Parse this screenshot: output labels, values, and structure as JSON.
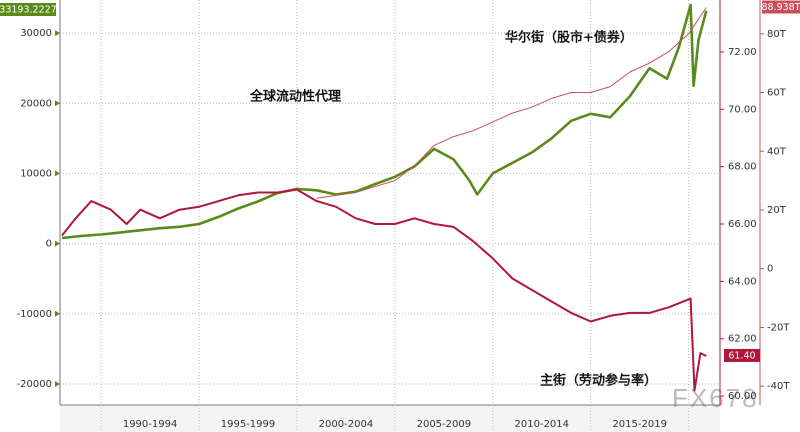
{
  "chart_data": {
    "type": "line",
    "annotations": [
      "华尔街（股市+债券）",
      "全球流动性代理",
      "主街（劳动参与率）"
    ],
    "watermark": "FX678",
    "categories": [
      "1990-1994",
      "1995-1999",
      "2000-2004",
      "2005-2009",
      "2010-2014",
      "2015-2019"
    ],
    "xlim": [
      1987.9,
      2021.6
    ],
    "xticks": [
      1990,
      1995,
      2000,
      2005,
      2010,
      2015,
      2020
    ],
    "ylim": [
      -23000,
      34714
    ],
    "yticks": [
      30000,
      20000,
      10000,
      0,
      -10000,
      -20000
    ],
    "y2lim": [
      59.69,
      73.81
    ],
    "y2ticks": [
      {
        "value": 72,
        "label": "72.00"
      },
      {
        "value": 70,
        "label": "70.00"
      },
      {
        "value": 68,
        "label": "68.00"
      },
      {
        "value": 66,
        "label": "66.00"
      },
      {
        "value": 64,
        "label": "64.00"
      },
      {
        "value": 62,
        "label": "62.00"
      },
      {
        "value": 60,
        "label": "60.00"
      }
    ],
    "y3lim": [
      -46.4,
      91.5
    ],
    "y3ticks": [
      {
        "value": 80,
        "label": "80T"
      },
      {
        "value": 60,
        "label": "60T"
      },
      {
        "value": 40,
        "label": "40T"
      },
      {
        "value": 20,
        "label": "20T"
      },
      0,
      {
        "value": -20,
        "label": "-20T"
      },
      {
        "value": -40,
        "label": "-40T"
      }
    ],
    "grid": true,
    "series": [
      {
        "color": "#5a8a1c",
        "axis": "y",
        "last_label": "33193.2227",
        "x": [
          1988,
          1989,
          1990,
          1991,
          1992,
          1993,
          1994,
          1995,
          1996,
          1997,
          1998,
          1999,
          2000,
          2001,
          2002,
          2003,
          2004,
          2005,
          2006,
          2007,
          2008,
          2008.8,
          2009.2,
          2010,
          2011,
          2012,
          2013,
          2014,
          2015,
          2016,
          2017,
          2018,
          2018.9,
          2019.5,
          2020.1,
          2020.25,
          2020.5,
          2020.9
        ],
        "values": [
          800,
          1100,
          1300,
          1600,
          1900,
          2200,
          2400,
          2800,
          3800,
          5000,
          6000,
          7200,
          7800,
          7600,
          7000,
          7400,
          8500,
          9500,
          11000,
          13500,
          12000,
          9000,
          7000,
          10000,
          11500,
          13000,
          15000,
          17500,
          18500,
          18000,
          21000,
          25000,
          23500,
          28000,
          34000,
          22500,
          29000,
          33193.2227
        ]
      },
      {
        "color": "#b0173a",
        "axis": "y2",
        "last_label": "61.40",
        "x": [
          1988,
          1988.7,
          1989.5,
          1990.5,
          1991.3,
          1992,
          1993,
          1994,
          1995,
          1996,
          1997,
          1998,
          1999,
          2000,
          2001,
          2002,
          2003,
          2004,
          2005,
          2006,
          2007,
          2008,
          2009,
          2010,
          2011,
          2012,
          2013,
          2014,
          2015,
          2016,
          2017,
          2018,
          2019,
          2020.1,
          2020.3,
          2020.6,
          2020.9
        ],
        "values": [
          65.6,
          66.2,
          66.8,
          66.5,
          66.0,
          66.5,
          66.2,
          66.5,
          66.6,
          66.8,
          67.0,
          67.1,
          67.1,
          67.2,
          66.8,
          66.6,
          66.2,
          66.0,
          66.0,
          66.2,
          66.0,
          65.9,
          65.4,
          64.8,
          64.1,
          63.7,
          63.3,
          62.9,
          62.6,
          62.8,
          62.9,
          62.9,
          63.1,
          63.4,
          60.2,
          61.5,
          61.4
        ]
      },
      {
        "color": "#c8505a",
        "axis": "y3",
        "last_label": "88.938T",
        "x": [
          2001,
          2003,
          2005,
          2006,
          2007,
          2008,
          2009,
          2010,
          2011,
          2012,
          2013,
          2014,
          2015,
          2016,
          2017,
          2018,
          2019,
          2020,
          2020.5,
          2020.9
        ],
        "values": [
          24,
          26,
          30,
          35,
          42,
          45,
          47,
          50,
          53,
          55,
          58,
          60,
          60,
          62,
          67,
          70,
          74,
          80,
          85,
          88.938
        ]
      }
    ]
  }
}
